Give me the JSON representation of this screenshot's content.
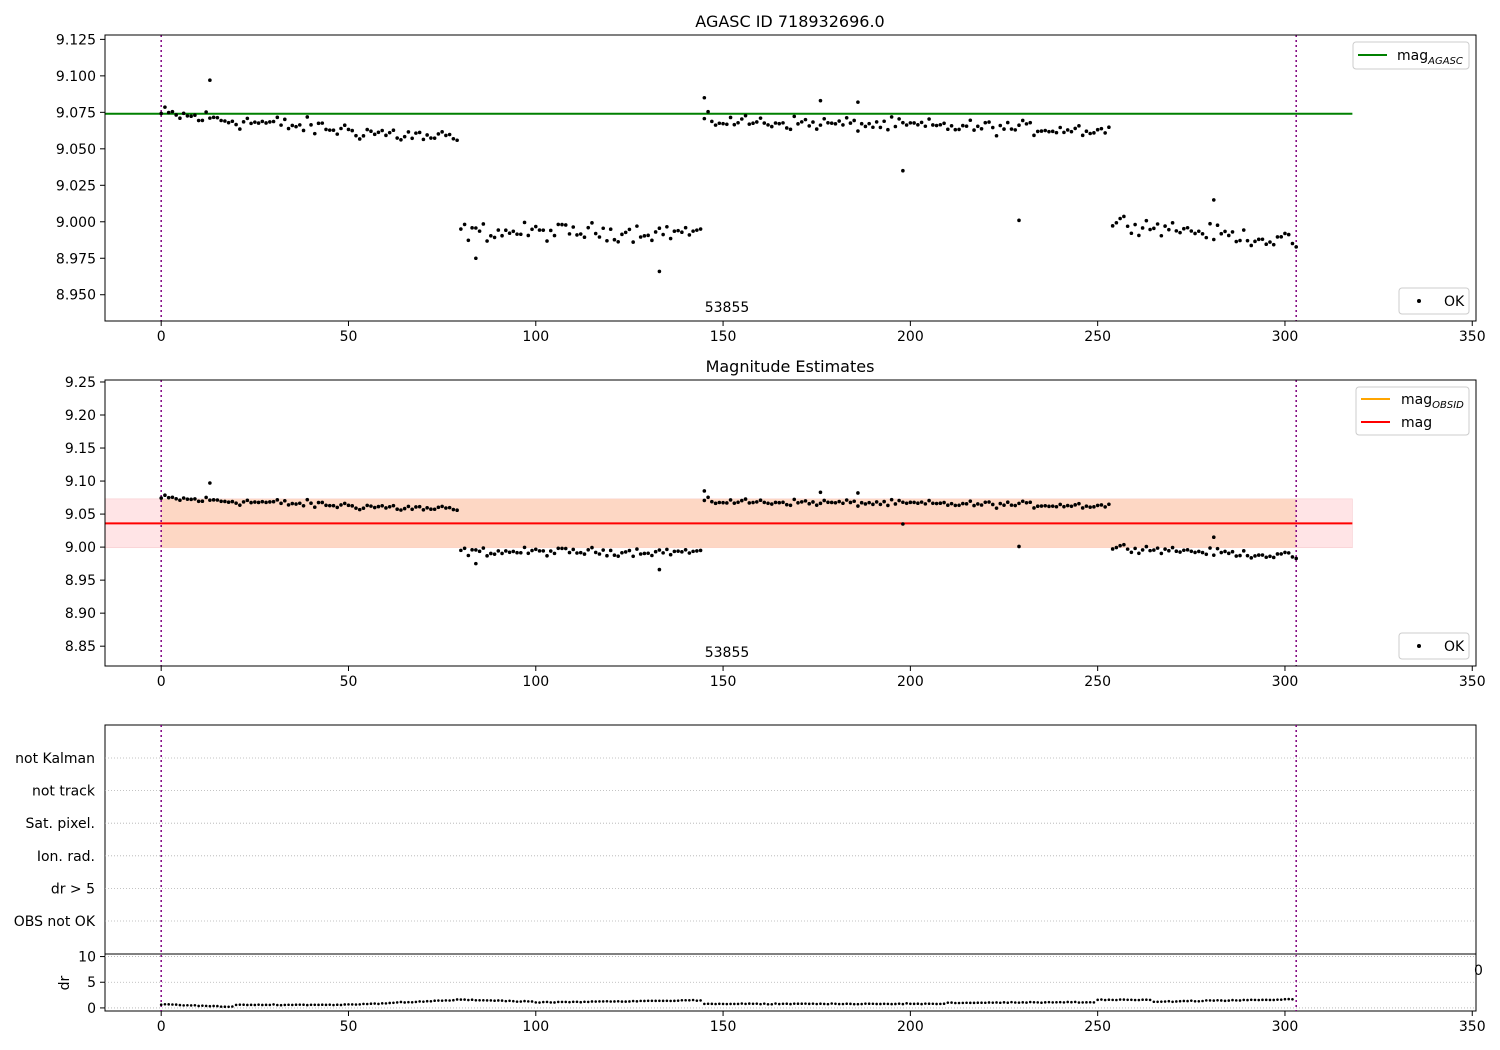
{
  "chart_data": [
    {
      "type": "scatter",
      "title": "AGASC ID 718932696.0",
      "xlim": [
        -15,
        351
      ],
      "ylim": [
        8.932,
        9.128
      ],
      "x_ticks": [
        "0",
        "50",
        "100",
        "150",
        "200",
        "250",
        "300",
        "350"
      ],
      "x_tick_values": [
        0,
        50,
        100,
        150,
        200,
        250,
        300,
        350
      ],
      "y_ticks": [
        "8.950",
        "8.975",
        "9.000",
        "9.025",
        "9.050",
        "9.075",
        "9.100",
        "9.125"
      ],
      "y_tick_values": [
        8.95,
        8.975,
        9.0,
        9.025,
        9.05,
        9.075,
        9.1,
        9.125
      ],
      "vlines": [
        0,
        303
      ],
      "hline": {
        "value": 9.074,
        "x_end": 318
      },
      "obsid_label": {
        "text": "53855",
        "x": 151
      },
      "legend_line": {
        "main": "mag",
        "sub": "AGASC"
      },
      "legend_points": "OK",
      "segments": [
        {
          "x0": 0,
          "x1": 79,
          "center": 9.065,
          "slope": -0.00022,
          "amp": 0.009
        },
        {
          "x0": 80,
          "x1": 144,
          "center": 8.993,
          "slope": 0.0,
          "amp": 0.009
        },
        {
          "x0": 145,
          "x1": 253,
          "center": 9.066,
          "slope": -6e-05,
          "amp": 0.007
        },
        {
          "x0": 254,
          "x1": 303,
          "center": 8.993,
          "slope": -0.0003,
          "amp": 0.008
        }
      ],
      "outliers": [
        [
          13,
          9.097
        ],
        [
          145,
          9.085
        ],
        [
          176,
          9.083
        ],
        [
          186,
          9.082
        ],
        [
          198,
          9.035
        ],
        [
          229,
          9.001
        ],
        [
          281,
          9.015
        ],
        [
          133,
          8.966
        ],
        [
          84,
          8.975
        ]
      ]
    },
    {
      "type": "scatter",
      "title": "Magnitude Estimates",
      "xlim": [
        -15,
        351
      ],
      "ylim": [
        8.82,
        9.253
      ],
      "x_ticks": [
        "0",
        "50",
        "100",
        "150",
        "200",
        "250",
        "300",
        "350"
      ],
      "x_tick_values": [
        0,
        50,
        100,
        150,
        200,
        250,
        300,
        350
      ],
      "y_ticks": [
        "8.85",
        "8.90",
        "8.95",
        "9.00",
        "9.05",
        "9.10",
        "9.15",
        "9.20",
        "9.25"
      ],
      "y_tick_values": [
        8.85,
        8.9,
        8.95,
        9.0,
        9.05,
        9.1,
        9.15,
        9.2,
        9.25
      ],
      "vlines": [
        0,
        303
      ],
      "mag_line": {
        "value": 9.036,
        "x_start": -15,
        "x_end": 318
      },
      "band_outer": {
        "y0": 8.999,
        "y1": 9.073,
        "x_start": -15,
        "x_end": 318,
        "color": "#ffe4e6"
      },
      "band_inner": {
        "y0": 8.999,
        "y1": 9.073,
        "x_start": 0,
        "x_end": 303,
        "color": "#fdd7c4"
      },
      "obsid_label": {
        "text": "53855",
        "x": 151
      },
      "legend": [
        {
          "main": "mag",
          "sub": "OBSID",
          "color": "#ffa500"
        },
        {
          "main": "mag",
          "sub": "",
          "color": "#ff0000"
        }
      ],
      "legend_points": "OK"
    },
    {
      "type": "scatter",
      "xlim": [
        -15,
        351
      ],
      "flag_labels": [
        "not Kalman",
        "not track",
        "Sat. pixel.",
        "Ion. rad.",
        "dr > 5",
        "OBS not OK"
      ],
      "dr_panel": {
        "ylabel": "dr",
        "ylim": [
          -0.6,
          10.5
        ],
        "y_ticks": [
          "0",
          "5",
          "10"
        ],
        "y_tick_values": [
          0,
          5,
          10
        ],
        "x_ticks": [
          "0",
          "50",
          "100",
          "150",
          "200",
          "250",
          "300",
          "350"
        ],
        "x_tick_values": [
          0,
          50,
          100,
          150,
          200,
          250,
          300,
          350
        ],
        "clipped_label": "0"
      },
      "vlines": [
        0,
        303
      ],
      "dr_segments": [
        {
          "x0": 0,
          "x1": 20,
          "v0": 0.7,
          "v1": 0.2
        },
        {
          "x0": 20,
          "x1": 50,
          "v0": 0.6,
          "v1": 0.6
        },
        {
          "x0": 50,
          "x1": 80,
          "v0": 0.6,
          "v1": 1.6
        },
        {
          "x0": 80,
          "x1": 100,
          "v0": 1.6,
          "v1": 1.2
        },
        {
          "x0": 100,
          "x1": 145,
          "v0": 1.1,
          "v1": 1.5
        },
        {
          "x0": 145,
          "x1": 210,
          "v0": 0.8,
          "v1": 0.8
        },
        {
          "x0": 210,
          "x1": 250,
          "v0": 1.0,
          "v1": 1.1
        },
        {
          "x0": 250,
          "x1": 265,
          "v0": 1.6,
          "v1": 1.6
        },
        {
          "x0": 265,
          "x1": 303,
          "v0": 1.2,
          "v1": 1.7
        }
      ]
    }
  ],
  "colors": {
    "vline": "#800080",
    "agasc_line": "#008000",
    "mag_line": "#ff0000",
    "obsid_line": "#ffa500",
    "points": "#000000",
    "grid": "#b0b0b0"
  }
}
